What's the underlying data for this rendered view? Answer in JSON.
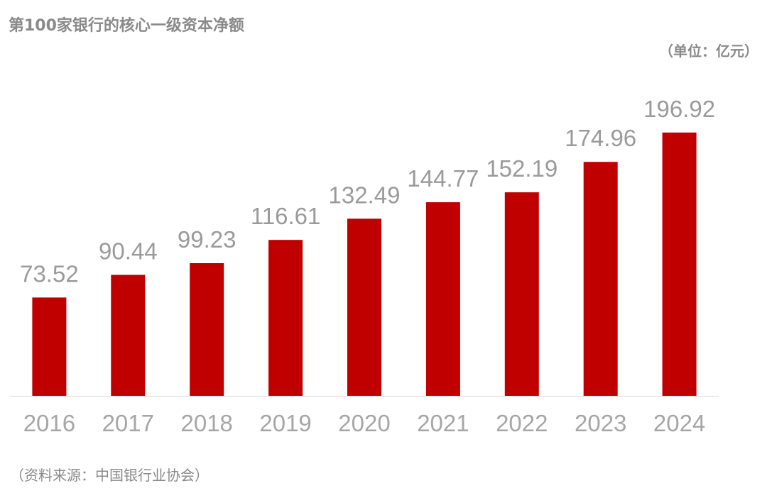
{
  "title": "第100家银行的核心一级资本净额",
  "unit": "（单位：亿元）",
  "source": "（资料来源：中国银行业协会）",
  "colors": {
    "bar": "#c00000",
    "label": "#9a9a9a",
    "axis": "#d9d9d9"
  },
  "chart_data": {
    "type": "bar",
    "title": "第100家银行的核心一级资本净额",
    "ylabel": "",
    "xlabel": "",
    "unit": "亿元",
    "categories": [
      "2016",
      "2017",
      "2018",
      "2019",
      "2020",
      "2021",
      "2022",
      "2023",
      "2024"
    ],
    "values": [
      73.52,
      90.44,
      99.23,
      116.61,
      132.49,
      144.77,
      152.19,
      174.96,
      196.92
    ],
    "value_labels": [
      "73.52",
      "90.44",
      "99.23",
      "116.61",
      "132.49",
      "144.77",
      "152.19",
      "174.96",
      "196.92"
    ],
    "ylim": [
      0,
      200
    ],
    "grid": false,
    "legend": "none"
  }
}
